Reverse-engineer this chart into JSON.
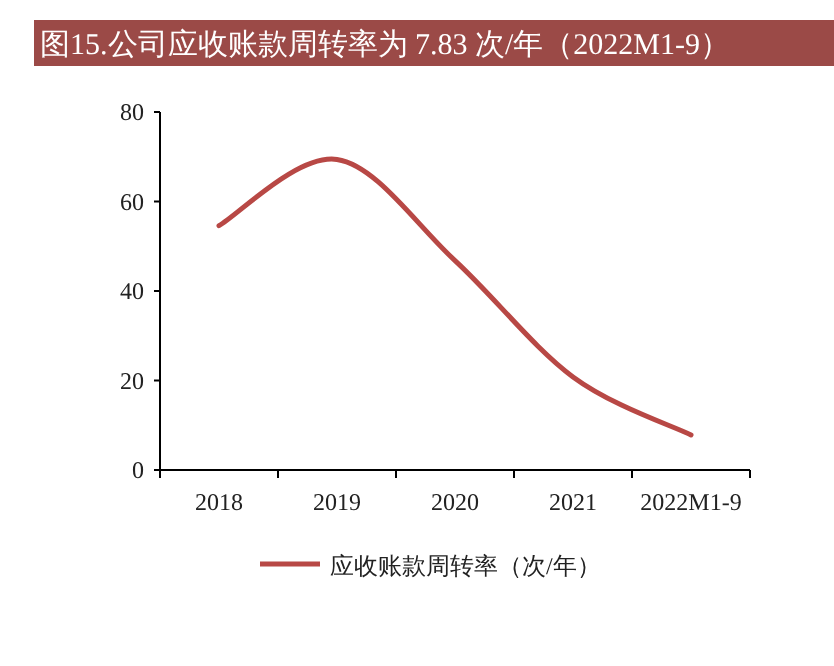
{
  "chart_data": {
    "type": "line",
    "title": "图15.公司应收账款周转率为 7.83 次/年（2022M1-9）",
    "categories": [
      "2018",
      "2019",
      "2020",
      "2021",
      "2022M1-9"
    ],
    "series": [
      {
        "name": "应收账款周转率（次/年）",
        "color": "#b84845",
        "values": [
          54.6,
          69.4,
          46.8,
          20.8,
          7.83
        ]
      }
    ],
    "ylim": [
      0,
      80
    ],
    "yticks": [
      0,
      20,
      40,
      60,
      80
    ],
    "grid": false,
    "legend": "bottom",
    "marker": "none",
    "line_style": "solid"
  }
}
